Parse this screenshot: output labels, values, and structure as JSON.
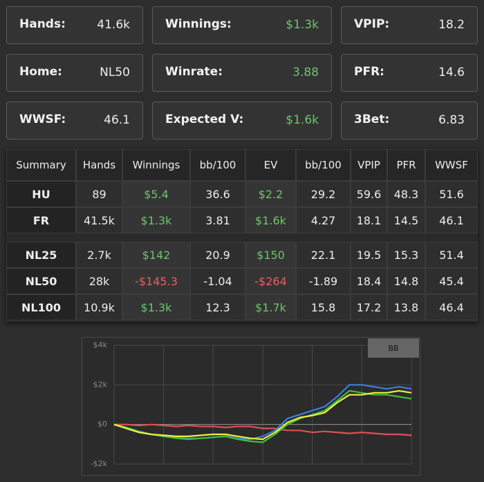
{
  "cards": [
    {
      "label": "Hands:",
      "value": "41.6k"
    },
    {
      "label": "Winnings:",
      "value": "$1.3k",
      "color": "#6cc56c"
    },
    {
      "label": "VPIP:",
      "value": "18.2"
    },
    {
      "label": "Home:",
      "value": "NL50"
    },
    {
      "label": "Winrate:",
      "value": "3.88",
      "color": "#6cc56c"
    },
    {
      "label": "PFR:",
      "value": "14.6"
    },
    {
      "label": "WWSF:",
      "value": "46.1"
    },
    {
      "label": "Expected V:",
      "value": "$1.6k",
      "color": "#6cc56c"
    },
    {
      "label": "3Bet:",
      "value": "6.83"
    }
  ],
  "table": {
    "columns": [
      "Summary",
      "Hands",
      "Winnings",
      "bb/100",
      "EV",
      "bb/100",
      "VPIP",
      "PFR",
      "WWSF"
    ],
    "groups": [
      [
        [
          "HU",
          "89",
          "$5.4",
          "36.6",
          "$2.2",
          "29.2",
          "59.6",
          "48.3",
          "51.6"
        ],
        [
          "FR",
          "41.5k",
          "$1.3k",
          "3.81",
          "$1.6k",
          "4.27",
          "18.1",
          "14.5",
          "46.1"
        ]
      ],
      [
        [
          "NL25",
          "2.7k",
          "$142",
          "20.9",
          "$150",
          "22.1",
          "19.5",
          "15.3",
          "51.4"
        ],
        [
          "NL50",
          "28k",
          "-$145.3",
          "-1.04",
          "-$264",
          "-1.89",
          "18.4",
          "14.8",
          "45.4"
        ],
        [
          "NL100",
          "10.9k",
          "$1.3k",
          "12.3",
          "$1.7k",
          "15.8",
          "17.2",
          "13.8",
          "46.4"
        ]
      ]
    ]
  },
  "chart_data": {
    "type": "line",
    "button": "BB",
    "ylim": [
      -2000,
      4000
    ],
    "yticks": [
      {
        "value": -2000,
        "label": "-$2k"
      },
      {
        "value": 0,
        "label": "$0"
      },
      {
        "value": 2000,
        "label": "$2k"
      },
      {
        "value": 4000,
        "label": "$4k"
      }
    ],
    "grid": true,
    "series": [
      {
        "color": "#e05050",
        "values": [
          0,
          0,
          -50,
          0,
          -50,
          -100,
          -50,
          -100,
          -100,
          -150,
          -100,
          -100,
          -200,
          -200,
          -300,
          -300,
          -400,
          -350,
          -400,
          -450,
          -400,
          -450,
          -500,
          -500,
          -550
        ]
      },
      {
        "color": "#3a7fe0",
        "values": [
          0,
          -200,
          -400,
          -500,
          -600,
          -650,
          -700,
          -700,
          -650,
          -600,
          -700,
          -750,
          -600,
          -300,
          300,
          500,
          700,
          900,
          1400,
          2000,
          2000,
          1900,
          1800,
          1900,
          1800
        ]
      },
      {
        "color": "#3fbf3f",
        "values": [
          0,
          -150,
          -350,
          -500,
          -600,
          -700,
          -750,
          -700,
          -650,
          -600,
          -750,
          -850,
          -900,
          -500,
          0,
          300,
          500,
          700,
          1200,
          1700,
          1600,
          1500,
          1500,
          1400,
          1300
        ]
      },
      {
        "color": "#f0f040",
        "values": [
          0,
          -200,
          -400,
          -500,
          -550,
          -600,
          -600,
          -550,
          -500,
          -500,
          -600,
          -700,
          -750,
          -400,
          100,
          350,
          450,
          600,
          1100,
          1500,
          1500,
          1600,
          1600,
          1700,
          1600
        ]
      }
    ]
  }
}
